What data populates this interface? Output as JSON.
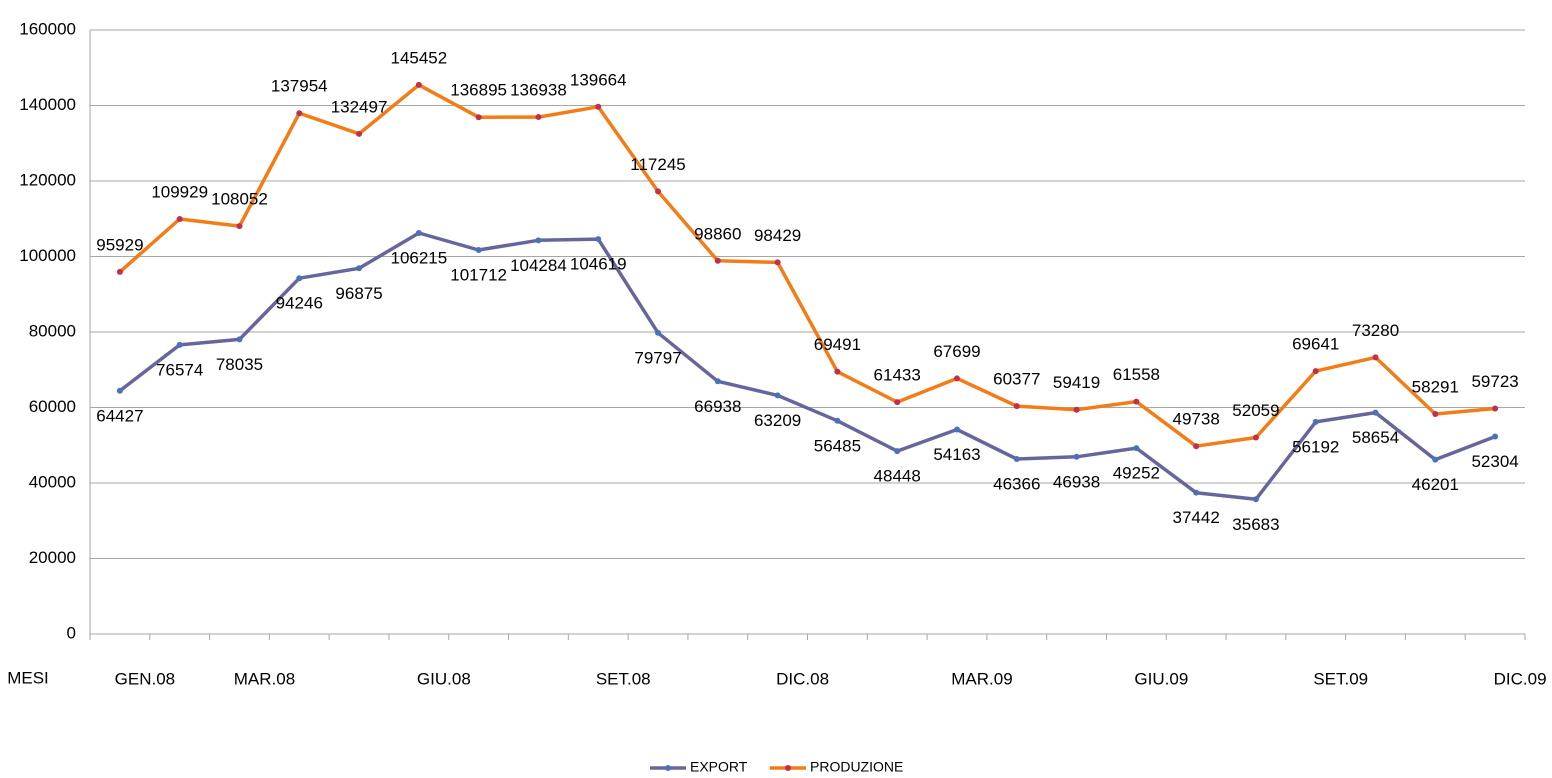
{
  "chart_data": {
    "type": "line",
    "xlabel": "MESI",
    "categories": [
      "GEN.08",
      null,
      "MAR.08",
      null,
      null,
      "GIU.08",
      null,
      null,
      "SET.08",
      null,
      null,
      "DIC.08",
      null,
      null,
      "MAR.09",
      null,
      null,
      "GIU.09",
      null,
      null,
      "SET.09",
      null,
      null,
      "DIC.09"
    ],
    "series": [
      {
        "name": "EXPORT",
        "color": "#66669c",
        "marker_color": "#4a72b8",
        "values": [
          64427,
          76574,
          78035,
          94246,
          96875,
          106215,
          101712,
          104284,
          104619,
          79797,
          66938,
          63209,
          56485,
          48448,
          54163,
          46366,
          46938,
          49252,
          37442,
          35683,
          56192,
          58654,
          46201,
          52304
        ]
      },
      {
        "name": "PRODUZIONE",
        "color": "#f47c16",
        "marker_color": "#c0304a",
        "values": [
          95929,
          109929,
          108052,
          137954,
          132497,
          145452,
          136895,
          136938,
          139664,
          117245,
          98860,
          98429,
          69491,
          61433,
          67699,
          60377,
          59419,
          61558,
          49738,
          52059,
          69641,
          73280,
          58291,
          59723
        ]
      }
    ],
    "ylim": [
      0,
      160000
    ],
    "yticks": [
      0,
      20000,
      40000,
      60000,
      80000,
      100000,
      120000,
      140000,
      160000
    ],
    "grid": true,
    "legend": "bottom"
  }
}
